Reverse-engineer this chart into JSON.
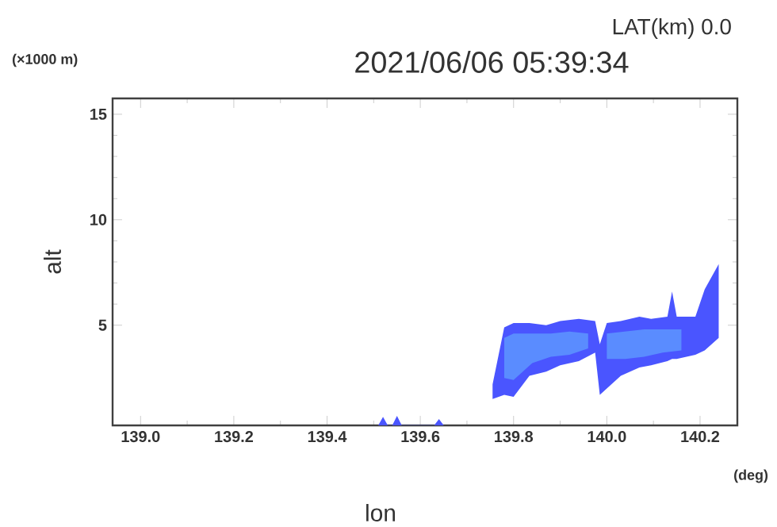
{
  "chart_data": {
    "type": "area",
    "title": "2021/06/06 05:39:34",
    "xlabel": "lon",
    "ylabel": "alt",
    "annotations": [
      "LAT(km) 0.0",
      "(×1000 m)",
      "(deg)"
    ],
    "xlim": [
      138.94,
      140.28
    ],
    "ylim": [
      0.25,
      15.75
    ],
    "xticks": [
      {
        "value": 139,
        "label": "139.0"
      },
      {
        "value": 139.2,
        "label": "139.2"
      },
      {
        "value": 139.4,
        "label": "139.4"
      },
      {
        "value": 139.6,
        "label": "139.6"
      },
      {
        "value": 139.8,
        "label": "139.8"
      },
      {
        "value": 140,
        "label": "140.0"
      },
      {
        "value": 140.2,
        "label": "140.2"
      }
    ],
    "yticks": [
      5,
      10,
      15
    ],
    "grid": false,
    "series": [
      {
        "color": "#4a55ff",
        "x": [
          139.755,
          139.78,
          139.8,
          139.834,
          139.87,
          139.9,
          139.94,
          139.975,
          139.985,
          140.0,
          140.03,
          140.07,
          140.095,
          140.13,
          140.14,
          140.15,
          140.19,
          140.21,
          140.24
        ],
        "values": [
          null,
          null,
          null,
          null,
          null,
          null,
          null,
          null,
          null,
          null,
          null,
          null,
          null,
          null,
          null,
          null,
          null,
          null,
          null
        ],
        "lower": [
          1.5,
          1.7,
          1.6,
          2.6,
          2.8,
          3.1,
          3.3,
          3.7,
          1.7,
          2.0,
          2.6,
          3.0,
          3.1,
          3.3,
          3.4,
          3.4,
          3.6,
          3.8,
          4.4
        ],
        "upper": [
          2.2,
          4.9,
          5.1,
          5.1,
          5.0,
          5.2,
          5.3,
          5.2,
          4.1,
          5.1,
          5.2,
          5.4,
          5.3,
          5.4,
          6.6,
          5.4,
          5.4,
          6.7,
          7.9
        ]
      },
      {
        "color": "#5a8cff",
        "x": [
          139.78,
          139.8,
          139.84,
          139.88,
          139.92,
          139.96
        ],
        "values": [
          null,
          null,
          null,
          null,
          null,
          null
        ],
        "lower": [
          2.5,
          2.4,
          3.2,
          3.5,
          3.6,
          3.9
        ],
        "upper": [
          4.4,
          4.6,
          4.6,
          4.6,
          4.7,
          4.6
        ]
      },
      {
        "color": "#5a8cff",
        "x": [
          140.0,
          140.04,
          140.08,
          140.12,
          140.16
        ],
        "values": [
          null,
          null,
          null,
          null,
          null
        ],
        "lower": [
          3.4,
          3.4,
          3.5,
          3.7,
          3.8
        ],
        "upper": [
          4.6,
          4.7,
          4.8,
          4.8,
          4.8
        ]
      },
      {
        "color": "#4a55ff",
        "x": [
          139.51,
          139.52,
          139.53,
          139.54,
          139.55,
          139.56,
          139.63,
          139.64,
          139.65
        ],
        "values": [
          null,
          null,
          null,
          null,
          null,
          null,
          null,
          null,
          null
        ],
        "lower": [
          0.25,
          0.25,
          0.25,
          0.25,
          0.25,
          0.25,
          0.25,
          0.25,
          0.25
        ],
        "upper": [
          0.26,
          0.65,
          0.26,
          0.26,
          0.7,
          0.26,
          0.26,
          0.55,
          0.26
        ]
      }
    ]
  }
}
